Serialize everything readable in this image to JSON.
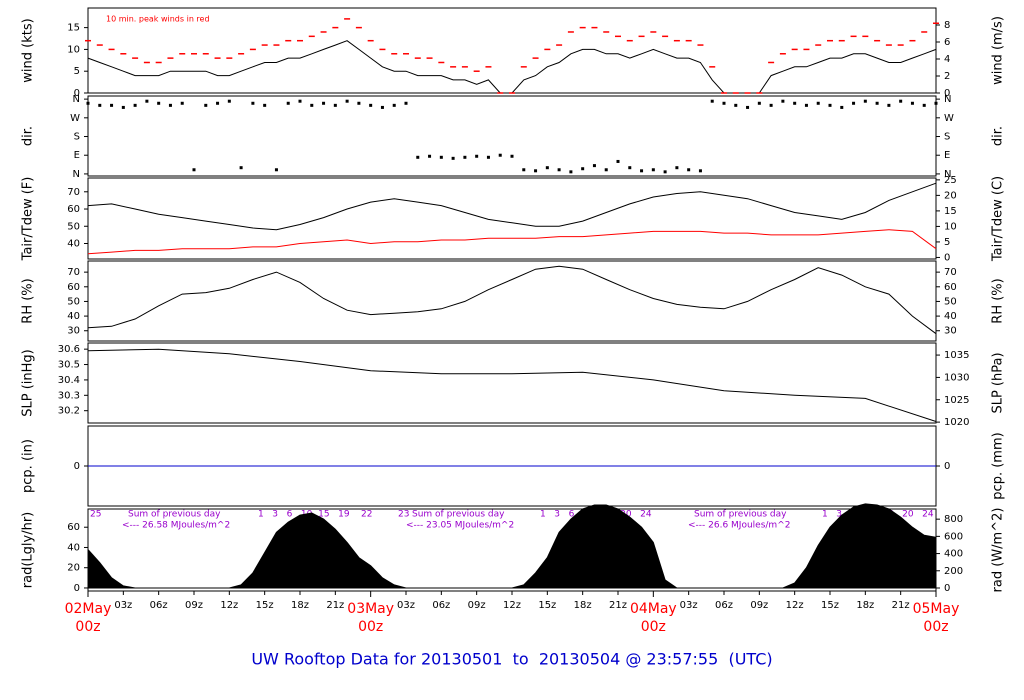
{
  "title": "UW Rooftop Data for 20130501  to  20130504 @ 23:57:55  (UTC)",
  "chart_data": [
    {
      "type": "line",
      "ylabel": "wind (kts)",
      "y2label": "wind (m/s)",
      "note": "10 min. peak winds in red",
      "xlim": [
        0,
        72
      ],
      "ylim": [
        0,
        19.5
      ],
      "yticks": [
        0,
        5,
        10,
        15
      ],
      "y2lim": [
        0,
        10
      ],
      "y2ticks": [
        0,
        2,
        4,
        6,
        8
      ],
      "x": [
        0,
        1,
        2,
        3,
        4,
        5,
        6,
        7,
        8,
        9,
        10,
        11,
        12,
        13,
        14,
        15,
        16,
        17,
        18,
        19,
        20,
        21,
        22,
        23,
        24,
        25,
        26,
        27,
        28,
        29,
        30,
        31,
        32,
        33,
        34,
        35,
        36,
        37,
        38,
        39,
        40,
        41,
        42,
        43,
        44,
        45,
        46,
        47,
        48,
        49,
        50,
        51,
        52,
        53,
        54,
        55,
        56,
        57,
        58,
        59,
        60,
        61,
        62,
        63,
        64,
        65,
        66,
        67,
        68,
        69,
        70,
        71,
        72
      ],
      "series": [
        {
          "color": "#000000",
          "values": [
            8,
            7,
            6,
            5,
            4,
            4,
            4,
            5,
            5,
            5,
            5,
            4,
            4,
            5,
            6,
            7,
            7,
            8,
            8,
            9,
            10,
            11,
            12,
            10,
            8,
            6,
            5,
            5,
            4,
            4,
            4,
            3,
            3,
            2,
            3,
            0,
            0,
            3,
            4,
            6,
            7,
            9,
            10,
            10,
            9,
            9,
            8,
            9,
            10,
            9,
            8,
            8,
            7,
            3,
            0,
            0,
            0,
            0,
            4,
            5,
            6,
            6,
            7,
            8,
            8,
            9,
            9,
            8,
            7,
            7,
            8,
            9,
            10
          ]
        },
        {
          "color": "#ff0000",
          "marker": "dash",
          "values": [
            12,
            11,
            10,
            9,
            8,
            7,
            7,
            8,
            9,
            9,
            9,
            8,
            8,
            9,
            10,
            11,
            11,
            12,
            12,
            13,
            14,
            15,
            17,
            15,
            12,
            10,
            9,
            9,
            8,
            8,
            7,
            6,
            6,
            5,
            6,
            0,
            0,
            6,
            8,
            10,
            11,
            14,
            15,
            15,
            14,
            13,
            12,
            13,
            14,
            13,
            12,
            12,
            11,
            6,
            0,
            0,
            0,
            0,
            7,
            9,
            10,
            10,
            11,
            12,
            12,
            13,
            13,
            12,
            11,
            11,
            12,
            14,
            16
          ]
        }
      ]
    },
    {
      "type": "scatter",
      "ylabel": "dir.",
      "y2label": "dir.",
      "xlim": [
        0,
        72
      ],
      "ylim": [
        -10,
        375
      ],
      "yticks": [
        {
          "value": 0,
          "label": "N"
        },
        {
          "value": 90,
          "label": "E"
        },
        {
          "value": 180,
          "label": "S"
        },
        {
          "value": 270,
          "label": "W"
        },
        {
          "value": 360,
          "label": "N"
        }
      ],
      "y2lim": [
        -10,
        375
      ],
      "y2ticks": [
        {
          "value": 0,
          "label": "N"
        },
        {
          "value": 90,
          "label": "E"
        },
        {
          "value": 180,
          "label": "S"
        },
        {
          "value": 270,
          "label": "W"
        },
        {
          "value": 360,
          "label": "N"
        }
      ],
      "x": [
        0,
        1,
        2,
        3,
        4,
        5,
        6,
        7,
        8,
        9,
        10,
        11,
        12,
        13,
        14,
        15,
        16,
        17,
        18,
        19,
        20,
        21,
        22,
        23,
        24,
        25,
        26,
        27,
        28,
        29,
        30,
        31,
        32,
        33,
        34,
        35,
        36,
        37,
        38,
        39,
        40,
        41,
        42,
        43,
        44,
        45,
        46,
        47,
        48,
        49,
        50,
        51,
        52,
        53,
        54,
        55,
        56,
        57,
        58,
        59,
        60,
        61,
        62,
        63,
        64,
        65,
        66,
        67,
        68,
        69,
        70,
        71,
        72
      ],
      "series": [
        {
          "color": "#000000",
          "values": [
            340,
            330,
            330,
            320,
            330,
            350,
            340,
            330,
            340,
            20,
            330,
            340,
            350,
            30,
            340,
            330,
            20,
            340,
            350,
            330,
            340,
            330,
            350,
            340,
            330,
            320,
            330,
            340,
            80,
            85,
            80,
            75,
            80,
            85,
            80,
            90,
            85,
            20,
            15,
            30,
            20,
            10,
            25,
            40,
            20,
            60,
            30,
            15,
            20,
            10,
            30,
            20,
            15,
            350,
            340,
            330,
            320,
            340,
            330,
            350,
            340,
            330,
            340,
            330,
            320,
            340,
            350,
            340,
            330,
            350,
            340,
            330,
            340
          ]
        }
      ]
    },
    {
      "type": "line",
      "ylabel": "Tair/Tdew (F)",
      "y2label": "Tair/Tdew (C)",
      "xlim": [
        0,
        72
      ],
      "ylim": [
        31,
        78
      ],
      "yticks": [
        40,
        50,
        60,
        70
      ],
      "y2lim": [
        -0.5,
        25.6
      ],
      "y2ticks": [
        0,
        5,
        10,
        15,
        20,
        25
      ],
      "x": [
        0,
        2,
        4,
        6,
        8,
        10,
        12,
        14,
        16,
        18,
        20,
        22,
        24,
        26,
        28,
        30,
        32,
        34,
        36,
        38,
        40,
        42,
        44,
        46,
        48,
        50,
        52,
        54,
        56,
        58,
        60,
        62,
        64,
        66,
        68,
        70,
        72
      ],
      "series": [
        {
          "color": "#000000",
          "values": [
            62,
            63,
            60,
            57,
            55,
            53,
            51,
            49,
            48,
            51,
            55,
            60,
            64,
            66,
            64,
            62,
            58,
            54,
            52,
            50,
            50,
            53,
            58,
            63,
            67,
            69,
            70,
            68,
            66,
            62,
            58,
            56,
            54,
            58,
            65,
            70,
            75
          ]
        },
        {
          "color": "#ff0000",
          "values": [
            34,
            35,
            36,
            36,
            37,
            37,
            37,
            38,
            38,
            40,
            41,
            42,
            40,
            41,
            41,
            42,
            42,
            43,
            43,
            43,
            44,
            44,
            45,
            46,
            47,
            47,
            47,
            46,
            46,
            45,
            45,
            45,
            46,
            47,
            48,
            47,
            37
          ]
        }
      ]
    },
    {
      "type": "line",
      "ylabel": "RH (%)",
      "y2label": "RH (%)",
      "xlim": [
        0,
        72
      ],
      "ylim": [
        23,
        77.6
      ],
      "yticks": [
        30,
        40,
        50,
        60,
        70
      ],
      "y2lim": [
        23,
        77.6
      ],
      "y2ticks": [
        30,
        40,
        50,
        60,
        70
      ],
      "x": [
        0,
        2,
        4,
        6,
        8,
        10,
        12,
        14,
        16,
        18,
        20,
        22,
        24,
        26,
        28,
        30,
        32,
        34,
        36,
        38,
        40,
        42,
        44,
        46,
        48,
        50,
        52,
        54,
        56,
        58,
        60,
        62,
        64,
        66,
        68,
        70,
        72
      ],
      "series": [
        {
          "color": "#000000",
          "values": [
            32,
            33,
            38,
            47,
            55,
            56,
            59,
            65,
            70,
            63,
            52,
            44,
            41,
            42,
            43,
            45,
            50,
            58,
            65,
            72,
            74,
            72,
            65,
            58,
            52,
            48,
            46,
            45,
            50,
            58,
            65,
            73,
            68,
            60,
            55,
            40,
            28
          ]
        }
      ]
    },
    {
      "type": "line",
      "ylabel": "SLP (inHg)",
      "y2label": "SLP (hPa)",
      "xlim": [
        0,
        72
      ],
      "ylim": [
        30.12,
        30.64
      ],
      "yticks": [
        30.2,
        30.3,
        30.4,
        30.5,
        30.6
      ],
      "y2lim": [
        1019.8,
        1037.7
      ],
      "y2ticks": [
        1020,
        1025,
        1030,
        1035
      ],
      "x": [
        0,
        6,
        12,
        18,
        24,
        30,
        36,
        42,
        48,
        54,
        60,
        66,
        72
      ],
      "series": [
        {
          "color": "#000000",
          "values": [
            30.59,
            30.6,
            30.57,
            30.52,
            30.46,
            30.44,
            30.44,
            30.45,
            30.4,
            30.33,
            30.3,
            30.28,
            30.13
          ]
        }
      ]
    },
    {
      "type": "line",
      "ylabel": "pcp. (in)",
      "y2label": "pcp. (mm)",
      "xlim": [
        0,
        72
      ],
      "ylim": [
        -1,
        1
      ],
      "yticks": [
        0
      ],
      "y2lim": [
        -1,
        1
      ],
      "y2ticks": [
        0
      ],
      "x": [
        0,
        72
      ],
      "series": [
        {
          "color": "#0000cc",
          "values": [
            0,
            0
          ]
        }
      ]
    },
    {
      "type": "area",
      "ylabel": "rad(Lgly/hr)",
      "y2label": "rad (W/m^2)",
      "xlim": [
        0,
        72
      ],
      "ylim": [
        -3,
        78
      ],
      "yticks": [
        0,
        20,
        40,
        60
      ],
      "y2lim": [
        -35,
        918
      ],
      "y2ticks": [
        0,
        200,
        400,
        600,
        800
      ],
      "annotations": [
        "25",
        "Sum of previous day",
        "<--- 26.58 MJoules/m^2",
        "1   3   6   10  15   19    22",
        "23",
        "Sum of previous day",
        "<--- 23.05 MJoules/m^2",
        "1   3   6   10  15   20   24",
        "Sum of previous day",
        "<--- 26.6 MJoules/m^2",
        "1   3   6   10  15   20   24"
      ],
      "xticks": [
        {
          "value": 3,
          "label": "03z"
        },
        {
          "value": 6,
          "label": "06z"
        },
        {
          "value": 9,
          "label": "09z"
        },
        {
          "value": 12,
          "label": "12z"
        },
        {
          "value": 15,
          "label": "15z"
        },
        {
          "value": 18,
          "label": "18z"
        },
        {
          "value": 21,
          "label": "21z"
        },
        {
          "value": 27,
          "label": "03z"
        },
        {
          "value": 30,
          "label": "06z"
        },
        {
          "value": 33,
          "label": "09z"
        },
        {
          "value": 36,
          "label": "12z"
        },
        {
          "value": 39,
          "label": "15z"
        },
        {
          "value": 42,
          "label": "18z"
        },
        {
          "value": 45,
          "label": "21z"
        },
        {
          "value": 51,
          "label": "03z"
        },
        {
          "value": 54,
          "label": "06z"
        },
        {
          "value": 57,
          "label": "09z"
        },
        {
          "value": 60,
          "label": "12z"
        },
        {
          "value": 63,
          "label": "15z"
        },
        {
          "value": 66,
          "label": "18z"
        },
        {
          "value": 69,
          "label": "21z"
        }
      ],
      "day_ticks": [
        {
          "value": 0,
          "label": "02May"
        },
        {
          "value": 24,
          "label": "03May"
        },
        {
          "value": 48,
          "label": "04May"
        },
        {
          "value": 72,
          "label": "05May"
        }
      ],
      "day_ticks_sub": [
        {
          "value": 0,
          "label": "00z"
        },
        {
          "value": 24,
          "label": "00z"
        },
        {
          "value": 48,
          "label": "00z"
        },
        {
          "value": 72,
          "label": "00z"
        }
      ],
      "x": [
        0,
        1,
        2,
        3,
        4,
        5,
        6,
        7,
        8,
        9,
        10,
        11,
        12,
        13,
        14,
        15,
        16,
        17,
        18,
        19,
        20,
        21,
        22,
        23,
        24,
        25,
        26,
        27,
        28,
        29,
        30,
        31,
        32,
        33,
        34,
        35,
        36,
        37,
        38,
        39,
        40,
        41,
        42,
        43,
        44,
        45,
        46,
        47,
        48,
        49,
        50,
        51,
        52,
        53,
        54,
        55,
        56,
        57,
        58,
        59,
        60,
        61,
        62,
        63,
        64,
        65,
        66,
        67,
        68,
        69,
        70,
        71,
        72
      ],
      "series": [
        {
          "color": "#000000",
          "values": [
            38,
            25,
            10,
            2,
            0,
            0,
            0,
            0,
            0,
            0,
            0,
            0,
            0,
            3,
            15,
            35,
            55,
            65,
            72,
            74,
            68,
            58,
            45,
            30,
            22,
            10,
            3,
            0,
            0,
            0,
            0,
            0,
            0,
            0,
            0,
            0,
            0,
            3,
            15,
            30,
            55,
            68,
            78,
            82,
            82,
            78,
            70,
            60,
            45,
            8,
            0,
            0,
            0,
            0,
            0,
            0,
            0,
            0,
            0,
            0,
            5,
            20,
            42,
            60,
            72,
            80,
            83,
            82,
            78,
            70,
            60,
            52,
            50
          ]
        }
      ]
    }
  ]
}
